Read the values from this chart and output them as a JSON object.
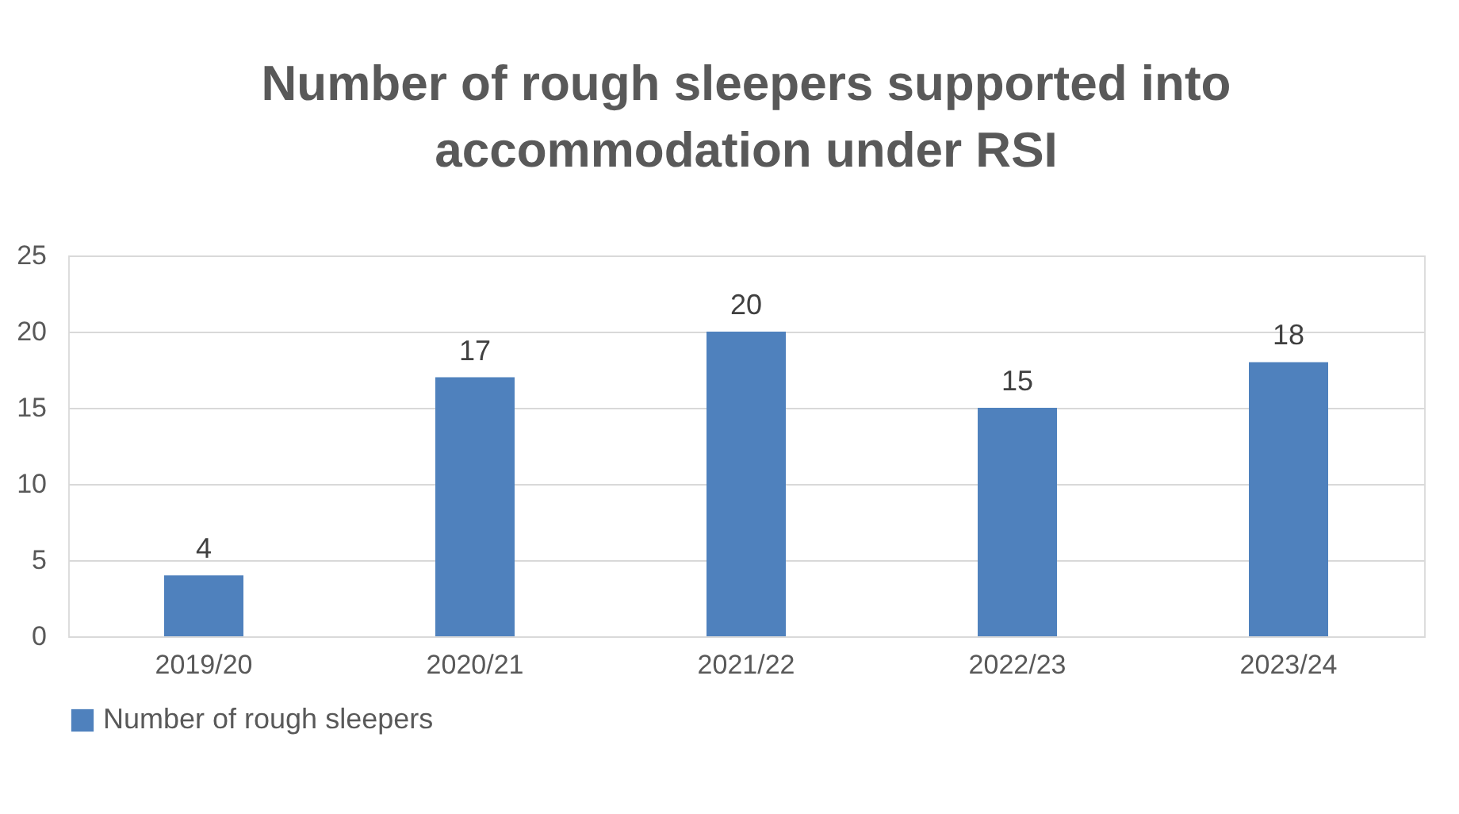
{
  "chart_data": {
    "type": "bar",
    "title": "Number of rough sleepers supported into accommodation under RSI",
    "categories": [
      "2019/20",
      "2020/21",
      "2021/22",
      "2022/23",
      "2023/24"
    ],
    "series": [
      {
        "name": "Number of rough sleepers",
        "color": "#4f81bd",
        "values": [
          4,
          17,
          20,
          15,
          18
        ]
      }
    ],
    "ylim": [
      0,
      25
    ],
    "yticks": [
      0,
      5,
      10,
      15,
      20,
      25
    ],
    "grid": "y",
    "legend": "bottom",
    "data_labels": true
  }
}
